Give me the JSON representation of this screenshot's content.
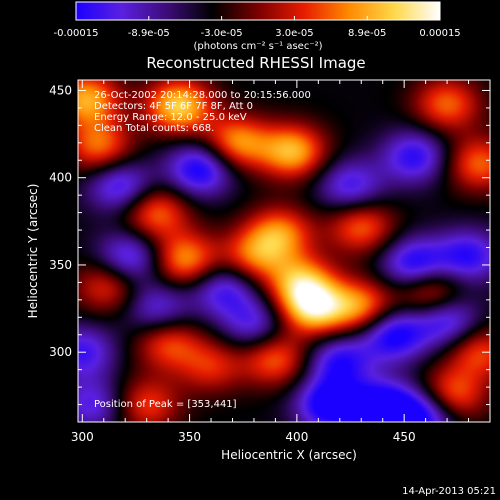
{
  "colorbar": {
    "ticks": [
      "-0.00015",
      "-8.9e-05",
      "-3.0e-05",
      "3.0e-05",
      "8.9e-05",
      "0.00015"
    ],
    "unit_label": "(photons cm⁻² s⁻¹ asec⁻²)",
    "stops": [
      "#1b00ff",
      "#5a20e0",
      "#3c0c78",
      "#000000",
      "#7a0000",
      "#e61c00",
      "#ff8a00",
      "#ffd84a",
      "#ffffff"
    ]
  },
  "chart_data": {
    "type": "heatmap",
    "title": "Reconstructed RHESSI Image",
    "xlabel": "Heliocentric X (arcsec)",
    "ylabel": "Heliocentric Y (arcsec)",
    "xlim": [
      298,
      490
    ],
    "ylim": [
      260,
      456
    ],
    "x_ticks": [
      "300",
      "350",
      "400",
      "450"
    ],
    "y_ticks": [
      "300",
      "350",
      "400",
      "450"
    ],
    "annotations": [
      "26-Oct-2002 20:14:28.000 to 20:15:56.000",
      "Detectors: 4F 5F 6F 7F 8F, Att 0",
      "Energy Range: 12.0 - 25.0 keV",
      "Clean    Total counts: 668."
    ],
    "peak_label": "Position of Peak = [353,441]",
    "value_range": [
      -0.00015,
      0.00015
    ],
    "sources": [
      {
        "x": 302,
        "y": 445,
        "amp": 0.00013
      },
      {
        "x": 308,
        "y": 418,
        "amp": 0.000105
      },
      {
        "x": 345,
        "y": 441,
        "amp": 0.00015
      },
      {
        "x": 398,
        "y": 415,
        "amp": 0.000135
      },
      {
        "x": 372,
        "y": 420,
        "amp": 0.00012
      },
      {
        "x": 470,
        "y": 442,
        "amp": 0.0001
      },
      {
        "x": 485,
        "y": 408,
        "amp": 0.0001
      },
      {
        "x": 334,
        "y": 380,
        "amp": 0.000105
      },
      {
        "x": 392,
        "y": 368,
        "amp": 0.00011
      },
      {
        "x": 430,
        "y": 372,
        "amp": 0.0001
      },
      {
        "x": 348,
        "y": 353,
        "amp": 0.00012
      },
      {
        "x": 402,
        "y": 340,
        "amp": 0.000125
      },
      {
        "x": 380,
        "y": 355,
        "amp": 9.5e-05
      },
      {
        "x": 408,
        "y": 325,
        "amp": 0.00015
      },
      {
        "x": 430,
        "y": 326,
        "amp": 0.000115
      },
      {
        "x": 462,
        "y": 335,
        "amp": 0.0001
      },
      {
        "x": 312,
        "y": 338,
        "amp": 8.5e-05
      },
      {
        "x": 340,
        "y": 305,
        "amp": 9e-05
      },
      {
        "x": 390,
        "y": 296,
        "amp": 0.0001
      },
      {
        "x": 485,
        "y": 300,
        "amp": 9e-05
      },
      {
        "x": 472,
        "y": 275,
        "amp": 0.00011
      },
      {
        "x": 330,
        "y": 270,
        "amp": 8.5e-05
      },
      {
        "x": 360,
        "y": 292,
        "amp": 7.5e-05
      },
      {
        "x": 355,
        "y": 405,
        "amp": -0.00012
      },
      {
        "x": 318,
        "y": 395,
        "amp": -0.0001
      },
      {
        "x": 455,
        "y": 412,
        "amp": -0.0001
      },
      {
        "x": 425,
        "y": 395,
        "amp": -9e-05
      },
      {
        "x": 322,
        "y": 354,
        "amp": -0.0001
      },
      {
        "x": 366,
        "y": 336,
        "amp": -9e-05
      },
      {
        "x": 455,
        "y": 350,
        "amp": -0.00012
      },
      {
        "x": 480,
        "y": 355,
        "amp": -0.0001
      },
      {
        "x": 445,
        "y": 310,
        "amp": -0.00012
      },
      {
        "x": 470,
        "y": 318,
        "amp": -0.0001
      },
      {
        "x": 335,
        "y": 325,
        "amp": -8e-05
      },
      {
        "x": 380,
        "y": 316,
        "amp": -8e-05
      },
      {
        "x": 420,
        "y": 295,
        "amp": -0.0001
      },
      {
        "x": 440,
        "y": 268,
        "amp": -0.00014
      },
      {
        "x": 415,
        "y": 270,
        "amp": -0.00013
      },
      {
        "x": 460,
        "y": 264,
        "amp": -0.00012
      },
      {
        "x": 300,
        "y": 300,
        "amp": -9e-05
      },
      {
        "x": 305,
        "y": 270,
        "amp": -8e-05
      }
    ]
  },
  "footer": {
    "timestamp": "14-Apr-2013 05:21"
  }
}
